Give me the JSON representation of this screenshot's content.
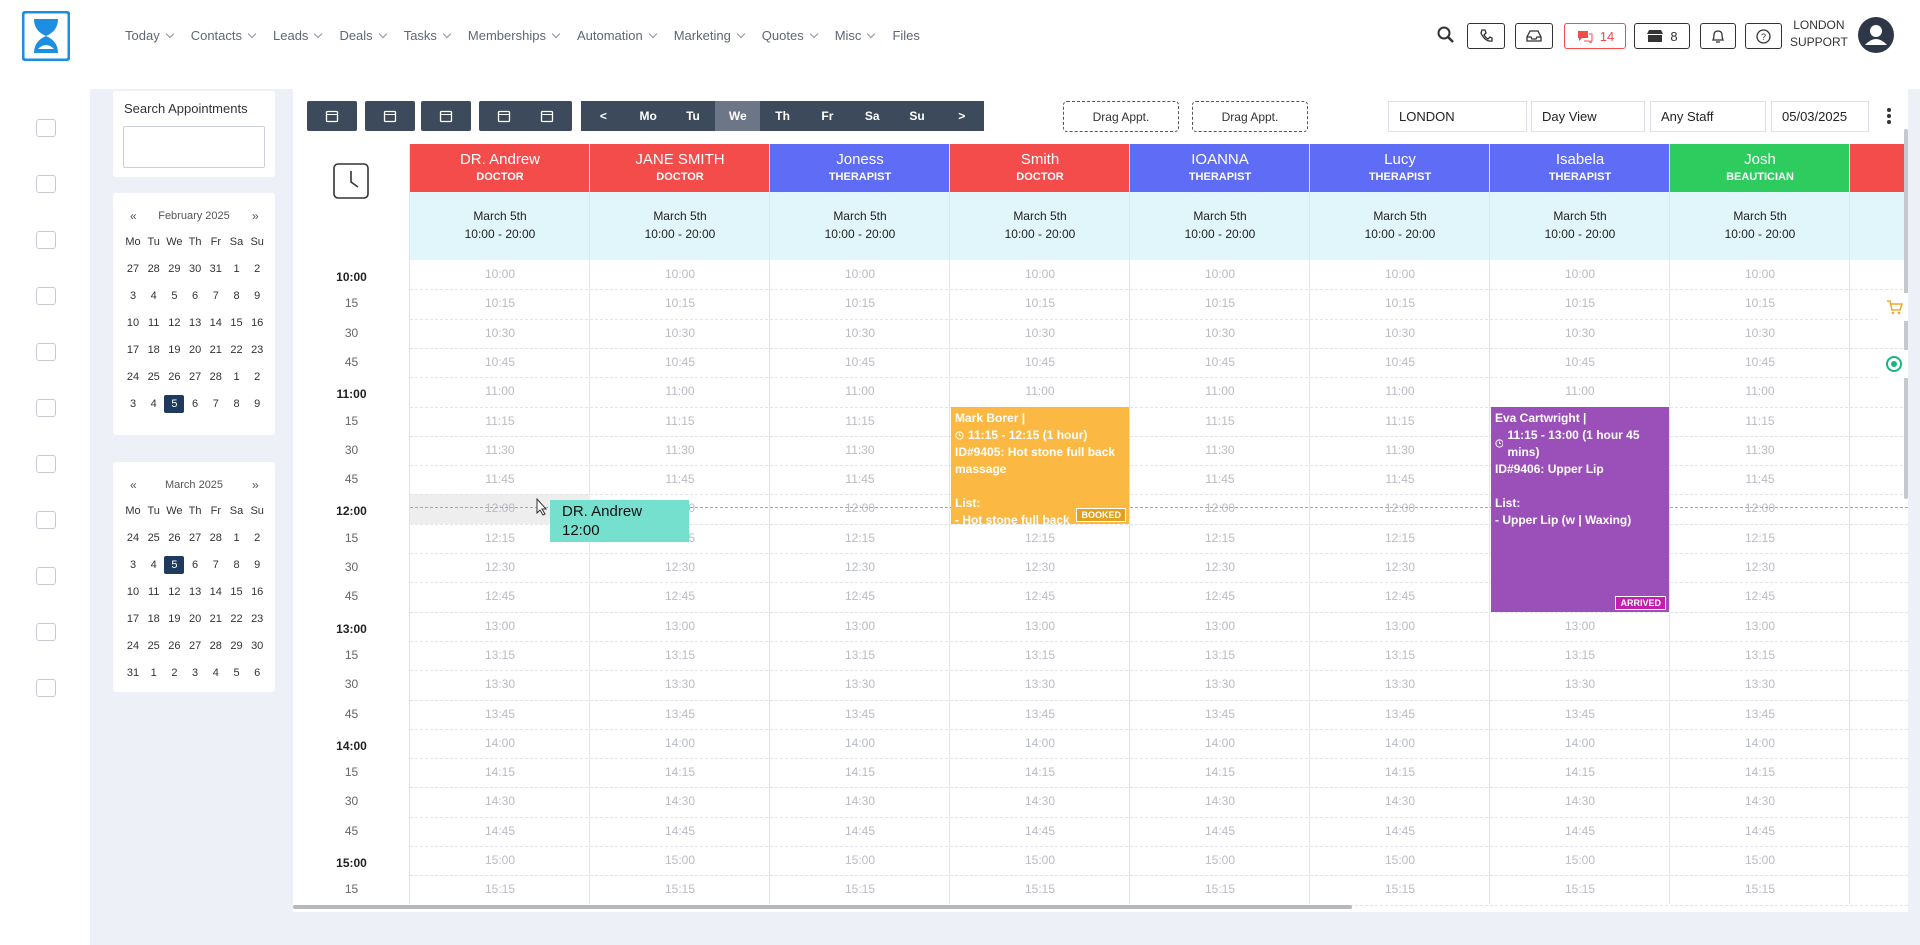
{
  "nav": {
    "menu": [
      "Today",
      "Contacts",
      "Leads",
      "Deals",
      "Tasks",
      "Memberships",
      "Automation",
      "Marketing",
      "Quotes",
      "Misc",
      "Files"
    ],
    "badges": {
      "chat": "14",
      "store": "8"
    },
    "user": [
      "LONDON",
      "SUPPORT"
    ]
  },
  "search": {
    "title": "Search Appointments"
  },
  "calendars": [
    {
      "prev": "«",
      "title": "February 2025",
      "next": "»",
      "weekdays": [
        "Mo",
        "Tu",
        "We",
        "Th",
        "Fr",
        "Sa",
        "Su"
      ],
      "weeks": [
        [
          27,
          28,
          29,
          30,
          31,
          1,
          2
        ],
        [
          3,
          4,
          5,
          6,
          7,
          8,
          9
        ],
        [
          10,
          11,
          12,
          13,
          14,
          15,
          16
        ],
        [
          17,
          18,
          19,
          20,
          21,
          22,
          23
        ],
        [
          24,
          25,
          26,
          27,
          28,
          1,
          2
        ],
        [
          3,
          4,
          5,
          6,
          7,
          8,
          9
        ]
      ],
      "highlight": {
        "week": 5,
        "day": 2
      }
    },
    {
      "prev": "«",
      "title": "March 2025",
      "next": "»",
      "weekdays": [
        "Mo",
        "Tu",
        "We",
        "Th",
        "Fr",
        "Sa",
        "Su"
      ],
      "weeks": [
        [
          24,
          25,
          26,
          27,
          28,
          1,
          2
        ],
        [
          3,
          4,
          5,
          6,
          7,
          8,
          9
        ],
        [
          10,
          11,
          12,
          13,
          14,
          15,
          16
        ],
        [
          17,
          18,
          19,
          20,
          21,
          22,
          23
        ],
        [
          24,
          25,
          26,
          27,
          28,
          29,
          30
        ],
        [
          31,
          1,
          2,
          3,
          4,
          5,
          6
        ]
      ],
      "highlight": {
        "week": 1,
        "day": 2
      }
    }
  ],
  "toolbar": {
    "days": [
      "<",
      "Mo",
      "Tu",
      "We",
      "Th",
      "Fr",
      "Sa",
      "Su",
      ">"
    ],
    "active_day": "We",
    "drag": [
      "Drag Appt.",
      "Drag Appt."
    ],
    "location": "LONDON",
    "view": "Day View",
    "staff": "Any Staff",
    "date": "05/03/2025"
  },
  "staff": [
    {
      "name": "DR. Andrew",
      "role": "DOCTOR",
      "color": "#f44b4b",
      "date": "March 5th",
      "hours": "10:00 - 20:00"
    },
    {
      "name": "JANE SMITH",
      "role": "DOCTOR",
      "color": "#f44b4b",
      "date": "March 5th",
      "hours": "10:00 - 20:00"
    },
    {
      "name": "Joness",
      "role": "THERAPIST",
      "color": "#5e6cf6",
      "date": "March 5th",
      "hours": "10:00 - 20:00"
    },
    {
      "name": "Smith",
      "role": "DOCTOR",
      "color": "#f44b4b",
      "date": "March 5th",
      "hours": "10:00 - 20:00"
    },
    {
      "name": "IOANNA",
      "role": "THERAPIST",
      "color": "#5e6cf6",
      "date": "March 5th",
      "hours": "10:00 - 20:00"
    },
    {
      "name": "Lucy",
      "role": "THERAPIST",
      "color": "#5e6cf6",
      "date": "March 5th",
      "hours": "10:00 - 20:00"
    },
    {
      "name": "Isabela",
      "role": "THERAPIST",
      "color": "#5e6cf6",
      "date": "March 5th",
      "hours": "10:00 - 20:00"
    },
    {
      "name": "Josh",
      "role": "BEAUTICIAN",
      "color": "#2ecc5f",
      "date": "March 5th",
      "hours": "10:00 - 20:00"
    },
    {
      "color": "#f44b4b"
    }
  ],
  "slots": [
    {
      "gutter": "10:00",
      "label": "10:00"
    },
    {
      "gutter": "15",
      "label": "10:15"
    },
    {
      "gutter": "30",
      "label": "10:30"
    },
    {
      "gutter": "45",
      "label": "10:45"
    },
    {
      "gutter": "11:00",
      "label": "11:00"
    },
    {
      "gutter": "15",
      "label": "11:15"
    },
    {
      "gutter": "30",
      "label": "11:30"
    },
    {
      "gutter": "45",
      "label": "11:45"
    },
    {
      "gutter": "12:00",
      "label": "12:00"
    },
    {
      "gutter": "15",
      "label": "12:15"
    },
    {
      "gutter": "30",
      "label": "12:30"
    },
    {
      "gutter": "45",
      "label": "12:45"
    },
    {
      "gutter": "13:00",
      "label": "13:00"
    },
    {
      "gutter": "15",
      "label": "13:15"
    },
    {
      "gutter": "30",
      "label": "13:30"
    },
    {
      "gutter": "45",
      "label": "13:45"
    },
    {
      "gutter": "14:00",
      "label": "14:00"
    },
    {
      "gutter": "15",
      "label": "14:15"
    },
    {
      "gutter": "30",
      "label": "14:30"
    },
    {
      "gutter": "45",
      "label": "14:45"
    },
    {
      "gutter": "15:00",
      "label": "15:00"
    },
    {
      "gutter": "15",
      "label": "15:15"
    }
  ],
  "appointments": [
    {
      "staff": "Smith",
      "start": "11:15",
      "end": "12:15",
      "color": "#fbb943",
      "name": "Mark Borer |",
      "time": "11:15 - 12:15 (1 hour)",
      "service": "ID#9405: Hot stone full back massage",
      "list_title": "List:",
      "list": [
        "- Hot stone full back"
      ],
      "status": "BOOKED",
      "status_color": "#e0a020"
    },
    {
      "staff": "Isabela",
      "start": "11:15",
      "end": "13:00",
      "color": "#9b4fb8",
      "name": "Eva Cartwright |",
      "time": "11:15 - 13:00 (1 hour 45 mins)",
      "service": "ID#9406: Upper Lip",
      "list_title": "List:",
      "list": [
        "- Upper Lip (w | Waxing)"
      ],
      "status": "ARRIVED",
      "status_color": "#c21fb0"
    }
  ],
  "drag_preview": {
    "staff": "DR. Andrew",
    "time": "12:00"
  }
}
